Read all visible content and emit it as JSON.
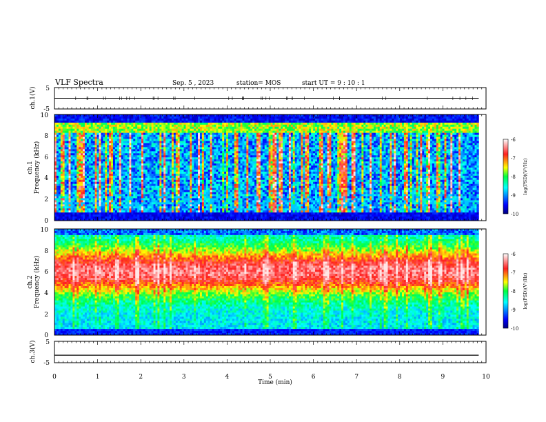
{
  "header": {
    "title": "VLF Spectra",
    "date": "Sep. 5 , 2023",
    "station": "station= MOS",
    "start": "start UT =  9 : 10 : 1"
  },
  "chart_data": [
    {
      "type": "line",
      "name": "ch1-voltage",
      "ylabel": "ch.1(V)",
      "ylim": [
        -5,
        5
      ],
      "yticks": [
        "5",
        "-5"
      ],
      "x": [
        0,
        9.83
      ],
      "y": [
        0,
        0
      ]
    },
    {
      "type": "heatmap",
      "name": "ch1-spectrogram",
      "ylabel": "Frequency (kHz)",
      "ylabel2": "ch.1",
      "ylim": [
        0,
        10
      ],
      "yticks": [
        "0",
        "2",
        "4",
        "6",
        "8",
        "10"
      ],
      "xlim": [
        0,
        9.83
      ],
      "colorbar": {
        "label": "log(PSD)(V²/Hz)",
        "range": [
          -10,
          -6
        ],
        "ticks": [
          "-6",
          "-7",
          "-8",
          "-9",
          "-10"
        ]
      }
    },
    {
      "type": "heatmap",
      "name": "ch2-spectrogram",
      "ylabel": "Frequency (kHz)",
      "ylabel2": "ch.2",
      "ylim": [
        0,
        10
      ],
      "yticks": [
        "0",
        "2",
        "4",
        "6",
        "8",
        "10"
      ],
      "xlim": [
        0,
        9.83
      ],
      "colorbar": {
        "label": "log(PSD)(V²/Hz)",
        "range": [
          -10,
          -6
        ],
        "ticks": [
          "-6",
          "-7",
          "-8",
          "-9",
          "-10"
        ]
      }
    },
    {
      "type": "line",
      "name": "ch3-voltage",
      "ylabel": "ch.3(V)",
      "ylim": [
        -5,
        5
      ],
      "yticks": [
        "5",
        "-5"
      ],
      "x": [
        0,
        9.83
      ],
      "y": [
        -1.5,
        -1.5
      ]
    }
  ],
  "xaxis": {
    "label": "Time  (min)",
    "xlim": [
      0,
      10
    ],
    "ticks": [
      "0",
      "1",
      "2",
      "3",
      "4",
      "5",
      "6",
      "7",
      "8",
      "9",
      "10"
    ]
  }
}
